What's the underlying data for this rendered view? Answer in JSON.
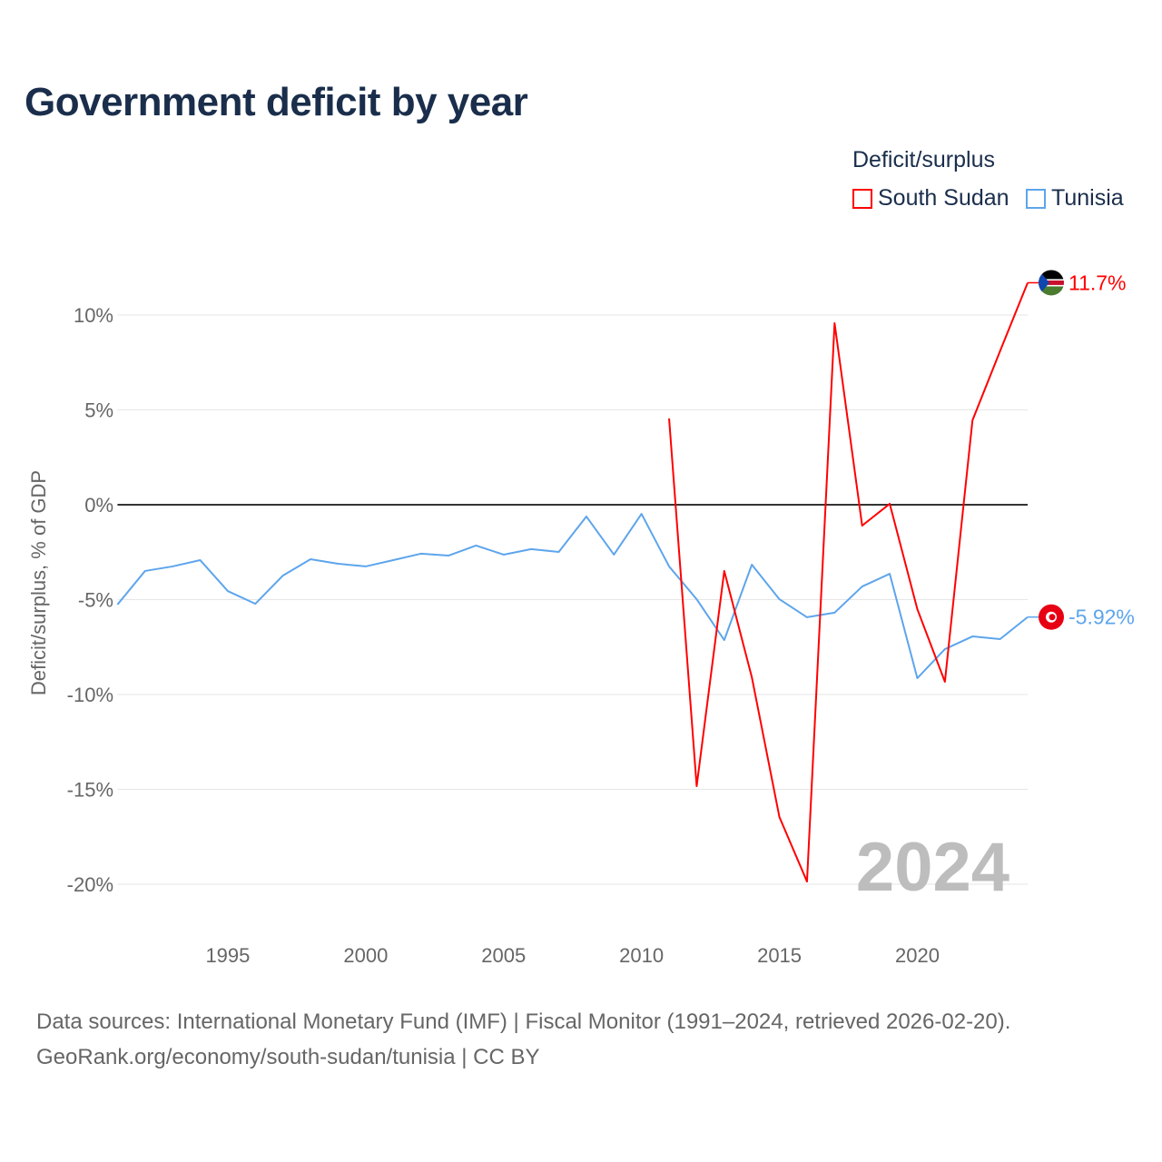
{
  "title": "Government deficit by year",
  "footer": {
    "line1": "Data sources: International Monetary Fund (IMF) | Fiscal Monitor (1991–2024, retrieved 2026-02-20).",
    "line2": "GeoRank.org/economy/south-sudan/tunisia | CC BY"
  },
  "chart_data": {
    "type": "line",
    "title": "Government deficit by year",
    "ylabel": "Deficit/surplus, % of GDP",
    "xlabel": "",
    "legend_title": "Deficit/surplus",
    "legend_position": "top-right",
    "xlim": [
      1991,
      2024
    ],
    "ylim": [
      -22,
      12
    ],
    "x_ticks": [
      1995,
      2000,
      2005,
      2010,
      2015,
      2020
    ],
    "y_ticks": [
      10,
      5,
      0,
      -5,
      -10,
      -15,
      -20
    ],
    "y_tick_labels": [
      "10%",
      "5%",
      "0%",
      "-5%",
      "-10%",
      "-15%",
      "-20%"
    ],
    "year_watermark": "2024",
    "series": [
      {
        "name": "South Sudan",
        "color": "#ff0000",
        "end_label": "11.7%",
        "flag": "south-sudan-flag",
        "x": [
          2011,
          2012,
          2013,
          2014,
          2015,
          2016,
          2017,
          2018,
          2019,
          2020,
          2021,
          2022,
          2023,
          2024
        ],
        "values": [
          4.55,
          -14.83,
          -3.49,
          -9.09,
          -16.46,
          -19.86,
          9.57,
          -1.1,
          0.05,
          -5.5,
          -9.33,
          4.45,
          8.1,
          11.7
        ]
      },
      {
        "name": "Tunisia",
        "color": "#5da5ec",
        "end_label": "-5.92%",
        "flag": "tunisia-flag",
        "x": [
          1991,
          1992,
          1993,
          1994,
          1995,
          1996,
          1997,
          1998,
          1999,
          2000,
          2001,
          2002,
          2003,
          2004,
          2005,
          2006,
          2007,
          2008,
          2009,
          2010,
          2011,
          2012,
          2013,
          2014,
          2015,
          2016,
          2017,
          2018,
          2019,
          2020,
          2021,
          2022,
          2023,
          2024
        ],
        "values": [
          -5.26,
          -3.49,
          -3.25,
          -2.92,
          -4.55,
          -5.22,
          -3.73,
          -2.87,
          -3.11,
          -3.25,
          -2.92,
          -2.58,
          -2.68,
          -2.15,
          -2.63,
          -2.34,
          -2.49,
          -0.62,
          -2.63,
          -0.48,
          -3.25,
          -4.98,
          -7.13,
          -3.16,
          -4.98,
          -5.93,
          -5.69,
          -4.31,
          -3.64,
          -9.14,
          -7.61,
          -6.94,
          -7.08,
          -5.92
        ]
      }
    ]
  }
}
